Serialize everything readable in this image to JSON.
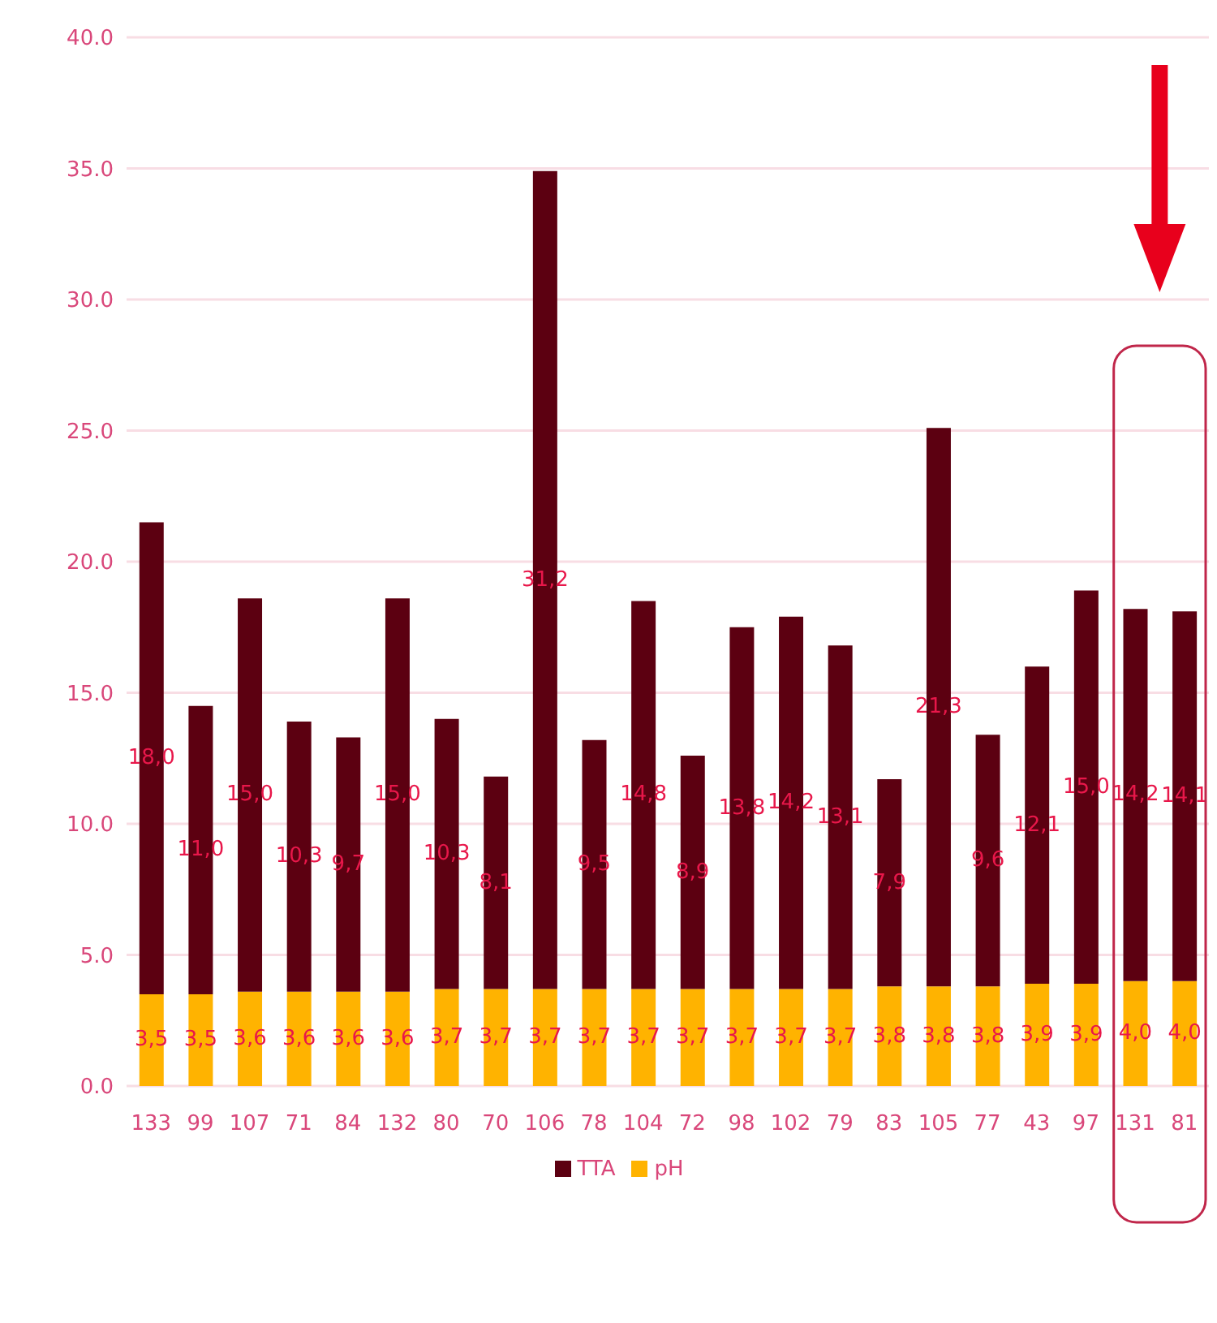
{
  "chart_data": {
    "type": "bar",
    "stacked": true,
    "categories": [
      "133",
      "99",
      "107",
      "71",
      "84",
      "132",
      "80",
      "70",
      "106",
      "78",
      "104",
      "72",
      "98",
      "102",
      "79",
      "83",
      "105",
      "77",
      "43",
      "97",
      "131",
      "81"
    ],
    "series": [
      {
        "name": "pH",
        "color": "#ffb300",
        "values": [
          3.5,
          3.5,
          3.6,
          3.6,
          3.6,
          3.6,
          3.7,
          3.7,
          3.7,
          3.7,
          3.7,
          3.7,
          3.7,
          3.7,
          3.7,
          3.8,
          3.8,
          3.8,
          3.9,
          3.9,
          4.0,
          4.0
        ],
        "value_labels": [
          "3,5",
          "3,5",
          "3,6",
          "3,6",
          "3,6",
          "3,6",
          "3,7",
          "3,7",
          "3,7",
          "3,7",
          "3,7",
          "3,7",
          "3,7",
          "3,7",
          "3,7",
          "3,8",
          "3,8",
          "3,8",
          "3,9",
          "3,9",
          "4,0",
          "4,0"
        ]
      },
      {
        "name": "TTA",
        "color": "#5c0011",
        "values": [
          18.0,
          11.0,
          15.0,
          10.3,
          9.7,
          15.0,
          10.3,
          8.1,
          31.2,
          9.5,
          14.8,
          8.9,
          13.8,
          14.2,
          13.1,
          7.9,
          21.3,
          9.6,
          12.1,
          15.0,
          14.2,
          14.1
        ],
        "value_labels": [
          "18,0",
          "11,0",
          "15,0",
          "10,3",
          "9,7",
          "15,0",
          "10,3",
          "8,1",
          "31,2",
          "9,5",
          "14,8",
          "8,9",
          "13,8",
          "14,2",
          "13,1",
          "7,9",
          "21,3",
          "9,6",
          "12,1",
          "15,0",
          "14,2",
          "14,1"
        ]
      }
    ],
    "ylim": [
      0,
      40
    ],
    "yticks": [
      {
        "value": 0,
        "label": "0.0"
      },
      {
        "value": 5,
        "label": "5.0"
      },
      {
        "value": 10,
        "label": "10.0"
      },
      {
        "value": 15,
        "label": "15.0"
      },
      {
        "value": 20,
        "label": "20.0"
      },
      {
        "value": 25,
        "label": "25.0"
      },
      {
        "value": 30,
        "label": "30.0"
      },
      {
        "value": 35,
        "label": "35.0"
      },
      {
        "value": 40,
        "label": "40.0"
      }
    ],
    "grid": "y",
    "legend": "bottom"
  }
}
